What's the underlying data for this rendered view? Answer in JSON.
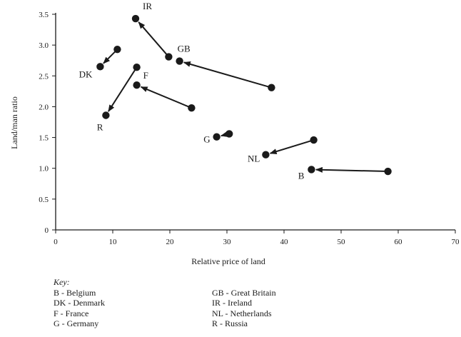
{
  "chart_data": {
    "type": "scatter",
    "title": "",
    "xlabel": "Relative price of land",
    "ylabel": "Land/man ratio",
    "xlim": [
      0,
      70
    ],
    "ylim": [
      0,
      3.5
    ],
    "xticks": [
      0,
      10,
      20,
      30,
      40,
      50,
      60,
      70
    ],
    "xtick_labels": [
      "0",
      "10",
      "20",
      "30",
      "40",
      "50",
      "60",
      "70"
    ],
    "yticks": [
      0,
      0.5,
      1.0,
      1.5,
      2.0,
      2.5,
      3.0,
      3.5
    ],
    "ytick_labels": [
      "0",
      "0.5",
      "1.0",
      "1.5",
      "2.0",
      "2.5",
      "3.0",
      "3.5"
    ],
    "grid": false,
    "series": [
      {
        "label": "IR",
        "from": [
          19.8,
          2.81
        ],
        "to": [
          14.0,
          3.43
        ]
      },
      {
        "label": "GB",
        "from": [
          37.8,
          2.31
        ],
        "to": [
          21.7,
          2.74
        ]
      },
      {
        "label": "DK",
        "from": [
          10.8,
          2.93
        ],
        "to": [
          7.8,
          2.65
        ]
      },
      {
        "label": "F",
        "from": [
          23.8,
          1.98
        ],
        "to": [
          14.2,
          2.35
        ]
      },
      {
        "label": "R",
        "from": [
          14.2,
          2.64
        ],
        "to": [
          8.8,
          1.86
        ]
      },
      {
        "label": "G",
        "from": [
          30.4,
          1.56
        ],
        "to": [
          28.2,
          1.51
        ]
      },
      {
        "label": "NL",
        "from": [
          45.2,
          1.46
        ],
        "to": [
          36.8,
          1.22
        ]
      },
      {
        "label": "B",
        "from": [
          58.2,
          0.95
        ],
        "to": [
          44.8,
          0.98
        ]
      }
    ]
  },
  "key": {
    "title": "Key:",
    "left": [
      "B - Belgium",
      "DK - Denmark",
      "F - France",
      "G - Germany"
    ],
    "right": [
      "GB - Great Britain",
      "IR - Ireland",
      "NL - Netherlands",
      "R - Russia"
    ]
  }
}
